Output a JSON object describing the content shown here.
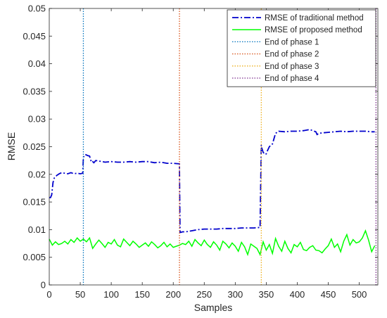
{
  "chart_data": {
    "type": "line",
    "xlabel": "Samples",
    "ylabel": "RMSE",
    "xlim": [
      0,
      530
    ],
    "ylim": [
      0,
      0.05
    ],
    "xticks": [
      0,
      50,
      100,
      150,
      200,
      250,
      300,
      350,
      400,
      450,
      500
    ],
    "yticks": [
      0,
      0.005,
      0.01,
      0.015,
      0.02,
      0.025,
      0.03,
      0.035,
      0.04,
      0.045,
      0.05
    ],
    "ytick_labels": [
      "0",
      "0.005",
      "0.01",
      "0.015",
      "0.02",
      "0.025",
      "0.03",
      "0.035",
      "0.04",
      "0.045",
      "0.05"
    ],
    "grid": false,
    "legend_position": "top-right",
    "series": [
      {
        "name": "RMSE of traditional method",
        "style": "dash-dot",
        "color": "#0000CC",
        "x": [
          0,
          2,
          4,
          6,
          8,
          12,
          16,
          20,
          25,
          30,
          35,
          40,
          45,
          50,
          54,
          55,
          58,
          62,
          65,
          68,
          70,
          72,
          75,
          80,
          90,
          100,
          110,
          120,
          130,
          140,
          150,
          160,
          170,
          180,
          190,
          200,
          210,
          211,
          212,
          215,
          220,
          230,
          240,
          250,
          260,
          270,
          280,
          290,
          300,
          310,
          320,
          330,
          340,
          342,
          343,
          345,
          348,
          350,
          352,
          355,
          360,
          365,
          370,
          380,
          390,
          400,
          410,
          420,
          430,
          432,
          435,
          440,
          450,
          460,
          470,
          480,
          490,
          500,
          510,
          520,
          525
        ],
        "values": [
          0.0158,
          0.0158,
          0.0163,
          0.0185,
          0.0193,
          0.0198,
          0.0201,
          0.0203,
          0.0202,
          0.0201,
          0.0203,
          0.0201,
          0.0202,
          0.0201,
          0.0202,
          0.0231,
          0.0236,
          0.0234,
          0.0233,
          0.0222,
          0.0223,
          0.0221,
          0.0225,
          0.0224,
          0.0222,
          0.0223,
          0.0222,
          0.0222,
          0.0223,
          0.0222,
          0.0223,
          0.0223,
          0.0221,
          0.0222,
          0.022,
          0.022,
          0.0219,
          0.0095,
          0.0095,
          0.0096,
          0.0096,
          0.0098,
          0.01,
          0.0101,
          0.0101,
          0.0101,
          0.0102,
          0.0102,
          0.0102,
          0.0103,
          0.0103,
          0.0103,
          0.0104,
          0.0253,
          0.0247,
          0.024,
          0.0236,
          0.0237,
          0.0243,
          0.025,
          0.0255,
          0.0274,
          0.0278,
          0.0277,
          0.0278,
          0.0278,
          0.0279,
          0.0281,
          0.0277,
          0.0272,
          0.0274,
          0.0275,
          0.0276,
          0.0277,
          0.0278,
          0.0277,
          0.0278,
          0.0278,
          0.0278,
          0.0277,
          0.0277
        ]
      },
      {
        "name": "RMSE of proposed method",
        "style": "solid",
        "color": "#00FF00",
        "x": [
          0,
          5,
          10,
          15,
          20,
          25,
          30,
          35,
          40,
          45,
          50,
          55,
          60,
          65,
          70,
          75,
          80,
          85,
          90,
          95,
          100,
          105,
          110,
          115,
          120,
          125,
          130,
          135,
          140,
          145,
          150,
          155,
          160,
          165,
          170,
          175,
          180,
          185,
          190,
          195,
          200,
          205,
          210,
          215,
          220,
          225,
          230,
          235,
          240,
          245,
          250,
          255,
          260,
          265,
          270,
          275,
          280,
          285,
          290,
          295,
          300,
          305,
          310,
          315,
          320,
          325,
          330,
          335,
          340,
          345,
          350,
          355,
          360,
          365,
          370,
          375,
          380,
          385,
          390,
          395,
          400,
          405,
          410,
          415,
          420,
          425,
          430,
          435,
          440,
          445,
          450,
          455,
          460,
          465,
          470,
          475,
          480,
          485,
          490,
          495,
          500,
          505,
          510,
          515,
          520,
          525
        ],
        "values": [
          0.0083,
          0.0072,
          0.0078,
          0.0073,
          0.0075,
          0.0079,
          0.0074,
          0.0082,
          0.0077,
          0.0085,
          0.0079,
          0.0083,
          0.0078,
          0.0085,
          0.0066,
          0.0074,
          0.0081,
          0.0075,
          0.0068,
          0.0077,
          0.0074,
          0.0082,
          0.0072,
          0.0069,
          0.0083,
          0.0077,
          0.0071,
          0.0079,
          0.0074,
          0.0068,
          0.0072,
          0.0076,
          0.007,
          0.0078,
          0.0073,
          0.0067,
          0.0071,
          0.0077,
          0.0069,
          0.0074,
          0.0068,
          0.007,
          0.0072,
          0.0075,
          0.0073,
          0.0079,
          0.007,
          0.0082,
          0.0076,
          0.0071,
          0.0081,
          0.0073,
          0.0068,
          0.0078,
          0.0072,
          0.0063,
          0.0079,
          0.0074,
          0.0067,
          0.0076,
          0.007,
          0.0061,
          0.0077,
          0.0069,
          0.0055,
          0.0074,
          0.007,
          0.0066,
          0.0055,
          0.0078,
          0.0063,
          0.0073,
          0.0057,
          0.0084,
          0.007,
          0.0061,
          0.0079,
          0.0066,
          0.0058,
          0.0073,
          0.0069,
          0.0077,
          0.0064,
          0.0062,
          0.0068,
          0.0071,
          0.0063,
          0.0062,
          0.0058,
          0.0065,
          0.0071,
          0.0083,
          0.0068,
          0.0074,
          0.006,
          0.0079,
          0.0091,
          0.0072,
          0.0082,
          0.0076,
          0.0078,
          0.0085,
          0.0098,
          0.0081,
          0.006,
          0.0071
        ]
      }
    ],
    "vlines": [
      {
        "name": "End of phase 1",
        "x": 55,
        "color": "#0072BD"
      },
      {
        "name": "End of phase 2",
        "x": 210,
        "color": "#D95319"
      },
      {
        "name": "End of phase 3",
        "x": 342,
        "color": "#EDB120"
      },
      {
        "name": "End of phase 4",
        "x": 527,
        "color": "#7E2F8E"
      }
    ]
  }
}
